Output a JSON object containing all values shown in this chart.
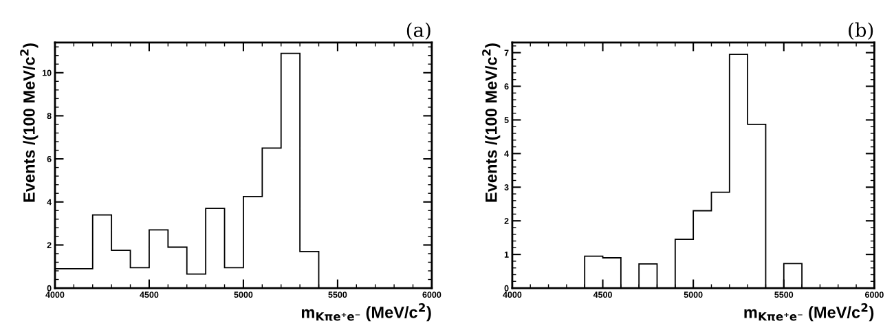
{
  "chart_data": [
    {
      "type": "histogram",
      "title": "(a)",
      "xlabel": "m$_{Kπe⁺e⁻}$ (MeV/c$^{2}$)",
      "ylabel": "Events /(100 MeV/c$^{2}$)",
      "color": "#000000",
      "bins": [
        4000,
        4100,
        4200,
        4300,
        4400,
        4500,
        4600,
        4700,
        4800,
        4900,
        5000,
        5100,
        5200,
        5300,
        5400,
        5500,
        5600,
        5700,
        5800,
        5900,
        6000
      ],
      "values": [
        0.9,
        0.9,
        3.4,
        1.75,
        0.95,
        2.7,
        1.9,
        0.65,
        3.7,
        0.95,
        4.25,
        6.5,
        10.9,
        1.7,
        0,
        0,
        0,
        0,
        0,
        0
      ],
      "xlim": [
        4000,
        6000
      ],
      "xticks": [
        4000,
        4500,
        5000,
        5500,
        6000
      ],
      "ylim": [
        0,
        11.4
      ],
      "yticks": [
        0,
        2,
        4,
        6,
        8,
        10
      ],
      "grid": false,
      "legend": false
    },
    {
      "type": "histogram",
      "title": "(b)",
      "xlabel": "m$_{Kπe⁺e⁻}$ (MeV/c$^{2}$)",
      "ylabel": "Events /(100 MeV/c$^{2}$)",
      "color": "#000000",
      "bins": [
        4000,
        4100,
        4200,
        4300,
        4400,
        4500,
        4600,
        4700,
        4800,
        4900,
        5000,
        5100,
        5200,
        5300,
        5400,
        5500,
        5600,
        5700,
        5800,
        5900,
        6000
      ],
      "values": [
        0,
        0,
        0,
        0,
        0.95,
        0.9,
        0,
        0.72,
        0,
        1.45,
        2.3,
        2.85,
        6.95,
        4.87,
        0,
        0.73,
        0,
        0,
        0,
        0
      ],
      "xlim": [
        4000,
        6000
      ],
      "xticks": [
        4000,
        4500,
        5000,
        5500,
        6000
      ],
      "ylim": [
        0,
        7.3
      ],
      "yticks": [
        0,
        1,
        2,
        3,
        4,
        5,
        6,
        7
      ],
      "grid": false,
      "legend": false
    }
  ]
}
